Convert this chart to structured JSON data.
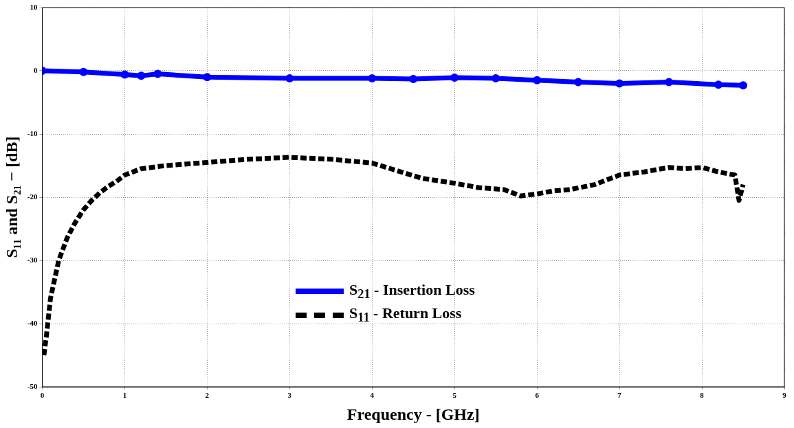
{
  "chart_data": {
    "type": "line",
    "xlabel": "Frequency - [GHz]",
    "ylabel": "S₁₁ and S₂₁ − [dB]",
    "xlim": [
      0,
      9
    ],
    "xticks": [
      0,
      1,
      2,
      3,
      4,
      5,
      6,
      7,
      8,
      9
    ],
    "ylim": [
      -50,
      10
    ],
    "yticks": [
      -50,
      -40,
      -30,
      -20,
      -10,
      0,
      10
    ],
    "grid": true,
    "legend": "bottom",
    "series": [
      {
        "name": "S$_{21}$ - Insertion Loss",
        "color": "#0000ff",
        "line_style": "solid",
        "marker": "circle",
        "x": [
          0,
          0.5,
          1,
          1.2,
          1.4,
          2,
          3,
          4,
          4.5,
          5,
          5.5,
          6,
          6.5,
          7,
          7.6,
          8.2,
          8.5
        ],
        "values": [
          0,
          -0.2,
          -0.6,
          -0.8,
          -0.5,
          -1,
          -1.2,
          -1.2,
          -1.3,
          -1.1,
          -1.2,
          -1.5,
          -1.8,
          -2,
          -1.8,
          -2.2,
          -2.3
        ]
      },
      {
        "name": "S$_{11}$ - Return Loss",
        "color": "#000000",
        "line_style": "dashed",
        "marker": "none",
        "x": [
          0.02,
          0.05,
          0.1,
          0.15,
          0.2,
          0.3,
          0.4,
          0.5,
          0.6,
          0.7,
          0.8,
          0.9,
          1,
          1.2,
          1.5,
          2,
          2.5,
          3,
          3.5,
          4,
          4.3,
          4.6,
          5,
          5.3,
          5.6,
          5.8,
          6,
          6.2,
          6.4,
          6.7,
          7,
          7.3,
          7.6,
          7.8,
          8,
          8.2,
          8.4,
          8.45,
          8.5
        ],
        "values": [
          -45,
          -42,
          -36,
          -33,
          -30,
          -26.5,
          -24,
          -22,
          -20.5,
          -19.3,
          -18.3,
          -17.5,
          -16.5,
          -15.5,
          -15,
          -14.5,
          -14,
          -13.7,
          -14,
          -14.6,
          -15.8,
          -17,
          -17.8,
          -18.5,
          -18.8,
          -19.8,
          -19.5,
          -19,
          -18.8,
          -18,
          -16.5,
          -16,
          -15.3,
          -15.5,
          -15.3,
          -16,
          -16.5,
          -20.5,
          -18
        ]
      }
    ]
  }
}
